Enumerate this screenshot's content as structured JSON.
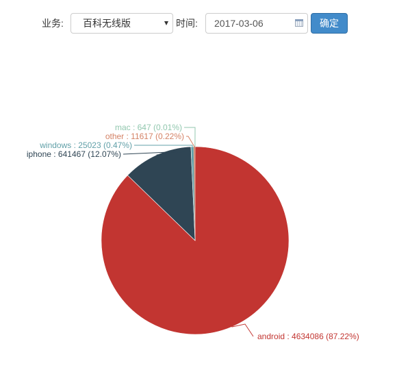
{
  "filter": {
    "business_label": "业务:",
    "business_value": "百科无线版",
    "time_label": "时间:",
    "date_value": "2017-03-06",
    "confirm_label": "确定"
  },
  "chart_data": {
    "type": "pie",
    "title": "",
    "slices": [
      {
        "name": "android",
        "value": 4634086,
        "percent": "87.22%",
        "color": "#c23531"
      },
      {
        "name": "iphone",
        "value": 641467,
        "percent": "12.07%",
        "color": "#2f4554"
      },
      {
        "name": "windows",
        "value": 25023,
        "percent": "0.47%",
        "color": "#61a0a8"
      },
      {
        "name": "other",
        "value": 11617,
        "percent": "0.22%",
        "color": "#d48265"
      },
      {
        "name": "mac",
        "value": 647,
        "percent": "0.01%",
        "color": "#91c7ae"
      }
    ],
    "labels": [
      {
        "name": "android",
        "text": "android : 4634086 (87.22%)"
      },
      {
        "name": "iphone",
        "text": "iphone : 641467 (12.07%)"
      },
      {
        "name": "windows",
        "text": "windows : 25023 (0.47%)"
      },
      {
        "name": "other",
        "text": "other : 11617 (0.22%)"
      },
      {
        "name": "mac",
        "text": "mac : 647 (0.01%)"
      }
    ]
  }
}
